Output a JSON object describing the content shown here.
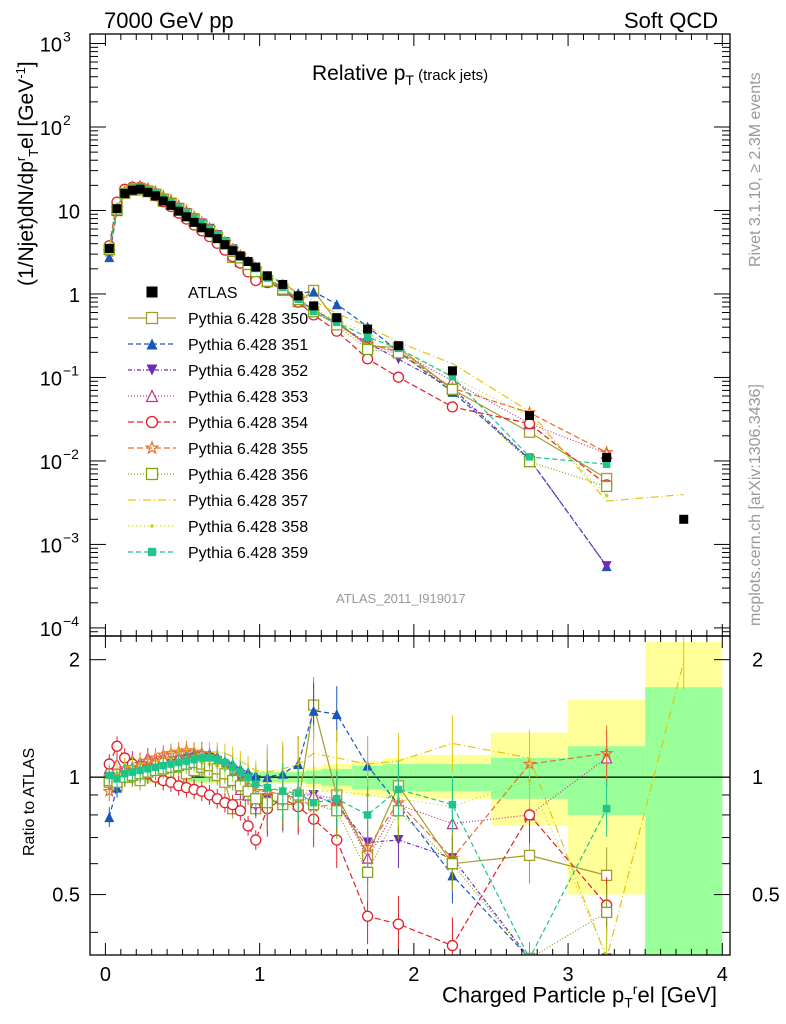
{
  "header": {
    "left": "7000 GeV pp",
    "right": "Soft QCD"
  },
  "title": {
    "main": "Relative p",
    "sub": "T",
    "suffix": " (track jets)"
  },
  "side_labels": {
    "rivet": "Rivet 3.1.10, ≥ 2.3M events",
    "mcplots": "mcplots.cern.ch [arXiv:1306.3436]"
  },
  "analysis_id": "ATLAS_2011_I919017",
  "axes": {
    "main_ylabel": "(1/Njet)dN/dp",
    "main_ylabel_sup_r": "r",
    "main_ylabel_sub_T": "T",
    "main_ylabel_tail": "el [GeV",
    "main_ylabel_unit_sup": "-1",
    "main_ylabel_end": "]",
    "ratio_ylabel": "Ratio to ATLAS",
    "xlabel": "Charged Particle p",
    "xlabel_sub": "T",
    "xlabel_sup": "r",
    "xlabel_tail": "el [GeV]",
    "main_ytick_labels": [
      "10",
      "10",
      "10",
      "1",
      "10",
      "10",
      "10",
      "10"
    ],
    "main_ytick_exps": [
      "3",
      "2",
      "",
      "",
      "−1",
      "−2",
      "−3",
      "−4"
    ],
    "ratio_ytick_labels": [
      "0.5",
      "1",
      "2"
    ],
    "xtick_labels": [
      "0",
      "1",
      "2",
      "3",
      "4"
    ]
  },
  "colors": {
    "atlas": "#000000",
    "band_inner": "#99ff99",
    "band_outer": "#ffff99"
  },
  "chart_data": {
    "type": "scatter",
    "x_range": [
      -0.1,
      4.05
    ],
    "main_y_range": [
      8e-05,
      1300
    ],
    "main_y_scale": "log",
    "ratio_y_range": [
      0.35,
      2.3
    ],
    "ratio_y_scale": "log",
    "legend_position": "left",
    "x": [
      0.025,
      0.075,
      0.125,
      0.175,
      0.225,
      0.275,
      0.325,
      0.375,
      0.425,
      0.475,
      0.525,
      0.575,
      0.625,
      0.675,
      0.725,
      0.775,
      0.825,
      0.875,
      0.925,
      0.975,
      1.05,
      1.15,
      1.25,
      1.35,
      1.5,
      1.7,
      1.9,
      2.25,
      2.75,
      3.25,
      3.75
    ],
    "atlas": [
      3.5,
      10.5,
      16.0,
      17.5,
      18.0,
      16.5,
      15.0,
      13.0,
      11.5,
      9.8,
      8.4,
      7.2,
      6.2,
      5.4,
      4.6,
      3.9,
      3.3,
      2.85,
      2.45,
      2.1,
      1.65,
      1.3,
      0.95,
      0.72,
      0.52,
      0.38,
      0.24,
      0.12,
      0.035,
      0.011,
      0.002
    ],
    "band_x_edges": [
      0,
      0.05,
      0.1,
      0.15,
      0.2,
      0.25,
      0.3,
      0.35,
      0.4,
      0.45,
      0.5,
      0.55,
      0.6,
      0.65,
      0.7,
      0.75,
      0.8,
      0.85,
      0.9,
      0.95,
      1.0,
      1.1,
      1.2,
      1.3,
      1.4,
      1.6,
      1.8,
      2.0,
      2.5,
      3.0,
      3.5,
      4.0
    ],
    "band_inner": [
      [
        0.96,
        1.04
      ],
      [
        0.97,
        1.03
      ],
      [
        0.97,
        1.03
      ],
      [
        0.97,
        1.03
      ],
      [
        0.97,
        1.03
      ],
      [
        0.97,
        1.03
      ],
      [
        0.97,
        1.03
      ],
      [
        0.97,
        1.03
      ],
      [
        0.97,
        1.03
      ],
      [
        0.97,
        1.03
      ],
      [
        0.97,
        1.03
      ],
      [
        0.97,
        1.03
      ],
      [
        0.97,
        1.03
      ],
      [
        0.97,
        1.03
      ],
      [
        0.97,
        1.03
      ],
      [
        0.97,
        1.03
      ],
      [
        0.97,
        1.03
      ],
      [
        0.97,
        1.03
      ],
      [
        0.97,
        1.03
      ],
      [
        0.97,
        1.03
      ],
      [
        0.97,
        1.03
      ],
      [
        0.97,
        1.03
      ],
      [
        0.97,
        1.03
      ],
      [
        0.96,
        1.04
      ],
      [
        0.95,
        1.05
      ],
      [
        0.93,
        1.07
      ],
      [
        0.92,
        1.08
      ],
      [
        0.92,
        1.08
      ],
      [
        0.88,
        1.12
      ],
      [
        0.8,
        1.2
      ],
      [
        0.35,
        1.7
      ]
    ],
    "band_outer": [
      [
        0.95,
        1.05
      ],
      [
        0.96,
        1.04
      ],
      [
        0.96,
        1.04
      ],
      [
        0.96,
        1.04
      ],
      [
        0.96,
        1.04
      ],
      [
        0.96,
        1.04
      ],
      [
        0.96,
        1.04
      ],
      [
        0.96,
        1.04
      ],
      [
        0.96,
        1.04
      ],
      [
        0.96,
        1.04
      ],
      [
        0.96,
        1.04
      ],
      [
        0.96,
        1.04
      ],
      [
        0.96,
        1.04
      ],
      [
        0.96,
        1.04
      ],
      [
        0.96,
        1.04
      ],
      [
        0.96,
        1.04
      ],
      [
        0.96,
        1.04
      ],
      [
        0.96,
        1.04
      ],
      [
        0.96,
        1.04
      ],
      [
        0.96,
        1.04
      ],
      [
        0.96,
        1.04
      ],
      [
        0.96,
        1.04
      ],
      [
        0.96,
        1.04
      ],
      [
        0.94,
        1.06
      ],
      [
        0.92,
        1.08
      ],
      [
        0.9,
        1.1
      ],
      [
        0.89,
        1.12
      ],
      [
        0.88,
        1.14
      ],
      [
        0.75,
        1.3
      ],
      [
        0.5,
        1.58
      ],
      [
        0.35,
        2.22
      ]
    ],
    "series": [
      {
        "name": "ATLAS",
        "marker": "square-filled",
        "color": "#000000",
        "dash": "",
        "ratio": [
          1,
          1,
          1,
          1,
          1,
          1,
          1,
          1,
          1,
          1,
          1,
          1,
          1,
          1,
          1,
          1,
          1,
          1,
          1,
          1,
          1,
          1,
          1,
          1,
          1,
          1,
          1,
          1,
          1,
          1,
          1
        ]
      },
      {
        "name": "Pythia 6.428 350",
        "marker": "square-open",
        "color": "#a59c2c",
        "dash": "",
        "ratio": [
          0.97,
          0.95,
          1.02,
          1.0,
          0.98,
          1.02,
          1.01,
          0.99,
          1.03,
          1.0,
          1.02,
          1.04,
          1.06,
          1.03,
          1.01,
          0.97,
          0.83,
          0.85,
          0.91,
          0.83,
          0.88,
          0.85,
          0.85,
          1.53,
          0.9,
          0.63,
          0.95,
          0.6,
          0.63,
          0.56,
          null
        ]
      },
      {
        "name": "Pythia 6.428 351",
        "marker": "triangle-up-filled",
        "color": "#1a56b9",
        "dash": "5,3",
        "ratio": [
          0.79,
          0.94,
          1.0,
          1.02,
          1.03,
          1.05,
          1.07,
          1.08,
          1.1,
          1.12,
          1.14,
          1.15,
          1.16,
          1.15,
          1.13,
          1.1,
          1.08,
          1.05,
          1.03,
          1.01,
          1.0,
          1.02,
          1.08,
          1.48,
          1.45,
          1.07,
          0.85,
          0.56,
          0.3,
          0.05,
          null
        ]
      },
      {
        "name": "Pythia 6.428 352",
        "marker": "triangle-down-filled",
        "color": "#6f2db6",
        "dash": "4,2,1,2",
        "ratio": [
          1.0,
          0.98,
          1.01,
          1.02,
          1.03,
          1.05,
          1.06,
          1.07,
          1.08,
          1.1,
          1.11,
          1.12,
          1.13,
          1.12,
          1.1,
          1.07,
          1.04,
          0.98,
          0.92,
          0.84,
          0.88,
          0.86,
          0.9,
          0.9,
          0.85,
          0.68,
          0.69,
          0.62,
          0.3,
          0.05,
          null
        ]
      },
      {
        "name": "Pythia 6.428 353",
        "marker": "triangle-up-open",
        "color": "#c2308f",
        "dash": "1,2",
        "ratio": [
          1.05,
          1.08,
          1.05,
          1.1,
          1.09,
          1.12,
          1.1,
          1.12,
          1.1,
          1.12,
          1.11,
          1.12,
          1.15,
          1.12,
          1.08,
          1.05,
          1.0,
          0.93,
          0.9,
          0.86,
          0.85,
          0.88,
          0.92,
          0.9,
          0.88,
          0.62,
          0.85,
          0.76,
          0.8,
          1.12,
          null
        ]
      },
      {
        "name": "Pythia 6.428 354",
        "marker": "circle-open",
        "color": "#e0202b",
        "dash": "6,3",
        "ratio": [
          1.08,
          1.2,
          1.12,
          1.08,
          1.05,
          1.02,
          1.0,
          0.98,
          0.97,
          0.95,
          0.94,
          0.93,
          0.92,
          0.9,
          0.88,
          0.86,
          0.85,
          0.82,
          0.75,
          0.69,
          0.83,
          0.88,
          0.84,
          0.78,
          0.69,
          0.44,
          0.42,
          0.37,
          0.8,
          0.47,
          null
        ]
      },
      {
        "name": "Pythia 6.428 355",
        "marker": "star-open",
        "color": "#e8712a",
        "dash": "6,3",
        "ratio": [
          0.92,
          1.0,
          1.05,
          1.06,
          1.08,
          1.1,
          1.12,
          1.14,
          1.15,
          1.16,
          1.17,
          1.16,
          1.15,
          1.13,
          1.1,
          1.07,
          1.03,
          1.0,
          0.95,
          0.92,
          0.92,
          0.9,
          0.88,
          0.84,
          0.85,
          0.66,
          0.86,
          0.62,
          1.08,
          1.15,
          null
        ]
      },
      {
        "name": "Pythia 6.428 356",
        "marker": "square-open",
        "color": "#85a317",
        "dash": "1,2",
        "ratio": [
          0.98,
          0.97,
          1.0,
          1.01,
          1.02,
          1.03,
          1.04,
          1.05,
          1.06,
          1.07,
          1.08,
          1.09,
          1.08,
          1.07,
          1.05,
          1.02,
          0.98,
          0.95,
          0.92,
          0.88,
          0.86,
          0.88,
          0.9,
          0.85,
          0.82,
          0.57,
          0.82,
          0.6,
          0.28,
          0.45,
          null
        ]
      },
      {
        "name": "Pythia 6.428 357",
        "marker": "none",
        "color": "#e7c30d",
        "dash": "8,3,1,3",
        "ratio": [
          1.02,
          1.05,
          1.06,
          1.07,
          1.08,
          1.09,
          1.1,
          1.11,
          1.12,
          1.12,
          1.13,
          1.14,
          1.15,
          1.16,
          1.16,
          1.15,
          1.13,
          1.1,
          1.07,
          1.04,
          1.03,
          1.05,
          1.08,
          1.15,
          1.12,
          1.08,
          1.1,
          1.22,
          1.12,
          0.3,
          1.98
        ]
      },
      {
        "name": "Pythia 6.428 358",
        "marker": "dot",
        "color": "#c7cf1c",
        "dash": "1,3",
        "ratio": [
          1.0,
          1.02,
          1.03,
          1.04,
          1.05,
          1.06,
          1.06,
          1.07,
          1.07,
          1.08,
          1.08,
          1.09,
          1.09,
          1.08,
          1.07,
          1.05,
          1.03,
          1.01,
          0.99,
          0.96,
          0.95,
          0.94,
          0.93,
          0.92,
          0.92,
          0.9,
          0.88,
          0.84,
          0.98,
          0.35,
          null
        ]
      },
      {
        "name": "Pythia 6.428 359",
        "marker": "square-filled-small",
        "color": "#1fc48a",
        "dash": "5,3",
        "ratio": [
          1.01,
          0.99,
          1.02,
          1.03,
          1.04,
          1.05,
          1.06,
          1.07,
          1.08,
          1.09,
          1.1,
          1.11,
          1.12,
          1.12,
          1.11,
          1.09,
          1.06,
          1.03,
          1.0,
          0.96,
          0.94,
          0.92,
          0.91,
          0.86,
          0.88,
          0.8,
          0.93,
          0.85,
          0.32,
          0.83,
          null
        ]
      }
    ]
  }
}
